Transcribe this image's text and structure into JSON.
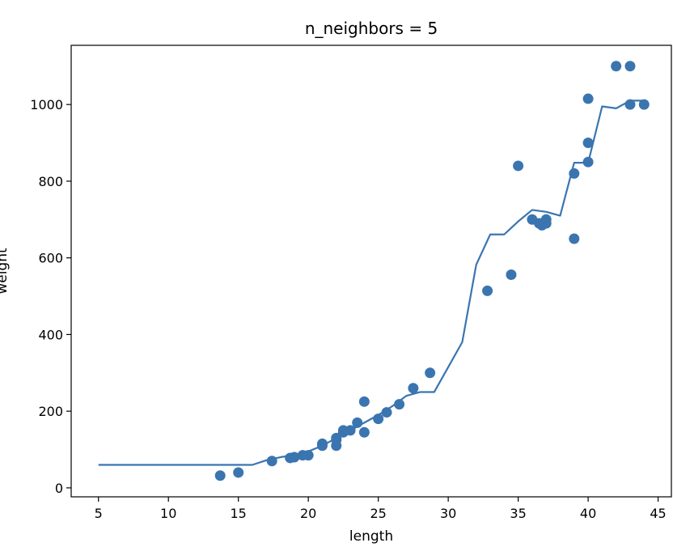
{
  "chart_data": {
    "type": "scatter",
    "title": "n_neighbors = 5",
    "xlabel": "length",
    "ylabel": "weight",
    "xlim": [
      3.05,
      45.95
    ],
    "ylim": [
      -23.4,
      1154.4
    ],
    "xticks": [
      5,
      10,
      15,
      20,
      25,
      30,
      35,
      40,
      45
    ],
    "yticks": [
      0,
      200,
      400,
      600,
      800,
      1000
    ],
    "grid": false,
    "legend": "none",
    "colors": {
      "accent": "#3a75b0",
      "axes": "#000000",
      "background": "#ffffff"
    },
    "series": [
      {
        "kind": "scatter",
        "points": [
          [
            13.7,
            32
          ],
          [
            15.0,
            40
          ],
          [
            17.4,
            70
          ],
          [
            18.7,
            78
          ],
          [
            19.0,
            80
          ],
          [
            19.6,
            85
          ],
          [
            20.0,
            85
          ],
          [
            21.0,
            110
          ],
          [
            21.0,
            115
          ],
          [
            22.0,
            110
          ],
          [
            22.0,
            130
          ],
          [
            22.0,
            125
          ],
          [
            22.5,
            145
          ],
          [
            22.5,
            150
          ],
          [
            23.0,
            150
          ],
          [
            23.5,
            170
          ],
          [
            24.0,
            145
          ],
          [
            24.0,
            225
          ],
          [
            25.0,
            180
          ],
          [
            25.6,
            197
          ],
          [
            26.5,
            218
          ],
          [
            27.5,
            260
          ],
          [
            28.7,
            300
          ],
          [
            32.8,
            514
          ],
          [
            34.5,
            556
          ],
          [
            35.0,
            840
          ],
          [
            36.0,
            700
          ],
          [
            36.5,
            690
          ],
          [
            36.7,
            685
          ],
          [
            37.0,
            700
          ],
          [
            37.0,
            690
          ],
          [
            39.0,
            650
          ],
          [
            39.0,
            820
          ],
          [
            40.0,
            850
          ],
          [
            40.0,
            1015
          ],
          [
            40.0,
            900
          ],
          [
            42.0,
            1100
          ],
          [
            43.0,
            1100
          ],
          [
            43.0,
            1000
          ],
          [
            44.0,
            1000
          ]
        ]
      },
      {
        "kind": "line",
        "x": [
          5,
          16,
          17,
          18,
          19,
          20,
          21,
          22,
          23,
          24,
          25,
          26,
          27,
          28,
          29,
          30,
          31,
          32,
          33,
          34,
          35,
          36,
          37,
          38,
          39,
          40,
          41,
          42,
          43,
          44
        ],
        "y": [
          60,
          60,
          72,
          80,
          86,
          95,
          110,
          130,
          150,
          170,
          190,
          213,
          240,
          250,
          250,
          315,
          380,
          582,
          661,
          661,
          695,
          725,
          720,
          710,
          848,
          848,
          995,
          990,
          1010,
          1010
        ]
      }
    ]
  }
}
